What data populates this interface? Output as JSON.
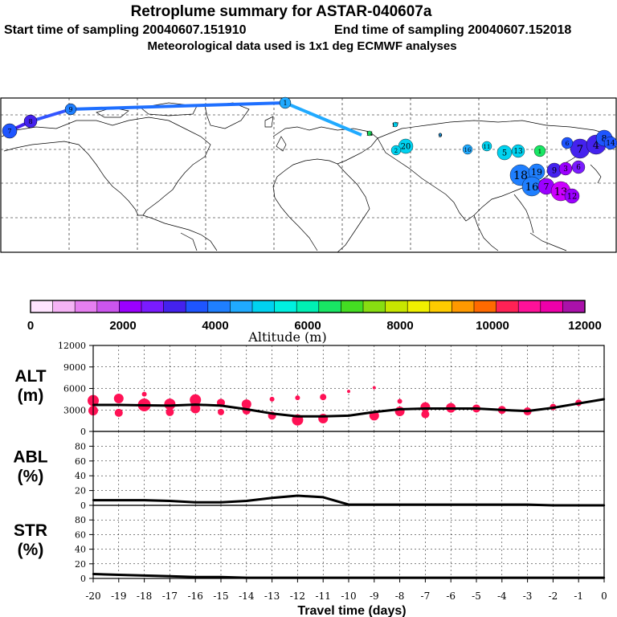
{
  "header": {
    "title": "Retroplume summary for ASTAR-040607a",
    "start_label": "Start time of sampling 20040607.151910",
    "end_label": "End time of sampling 20040607.152018",
    "met_label": "Meteorological data used is 1x1 deg ECMWF analyses"
  },
  "colorbar": {
    "title": "Altitude (m)",
    "tick_labels": [
      "0",
      "2000",
      "4000",
      "6000",
      "8000",
      "10000",
      "12000"
    ],
    "colors": [
      "#ffe4ff",
      "#f5b3f5",
      "#e67ff0",
      "#cc55ee",
      "#9b00ff",
      "#7a1bff",
      "#4422ee",
      "#1e55ff",
      "#1f7fff",
      "#20aaff",
      "#00d2f0",
      "#00f0e0",
      "#00f0b4",
      "#19e664",
      "#44dd22",
      "#88dd11",
      "#c8e600",
      "#f0f000",
      "#ffcc00",
      "#ff9900",
      "#ff6a00",
      "#ff2255",
      "#ff1199",
      "#ee00aa",
      "#aa11aa"
    ]
  },
  "map": {
    "trajectory_labels": [
      "7",
      "8",
      "9",
      "1",
      "2",
      "3",
      "4",
      "5",
      "6"
    ],
    "cluster_labels": [
      "1",
      "2",
      "3",
      "4",
      "5",
      "6",
      "7",
      "8",
      "9",
      "10",
      "11",
      "12",
      "13",
      "14",
      "15",
      "16",
      "17",
      "18",
      "19",
      "20"
    ]
  },
  "chart_data": [
    {
      "type": "line",
      "panel": "ALT",
      "ylabel": "ALT\n(m)",
      "ylabel_line1": "ALT",
      "ylabel_line2": "(m)",
      "xlim": [
        -20,
        0
      ],
      "ylim": [
        0,
        12000
      ],
      "yticks": [
        "0",
        "3000",
        "6000",
        "9000",
        "12000"
      ],
      "x": [
        -20,
        -19,
        -18,
        -17,
        -16,
        -15,
        -14,
        -13,
        -12,
        -11,
        -10,
        -9,
        -8,
        -7,
        -6,
        -5,
        -4,
        -3,
        -2,
        -1,
        0
      ],
      "values": [
        3700,
        3700,
        3650,
        3600,
        3750,
        3600,
        3100,
        2500,
        2100,
        2100,
        2200,
        2700,
        3100,
        3200,
        3200,
        3200,
        3000,
        2850,
        3300,
        3900,
        4500
      ],
      "cluster_points": [
        {
          "x": -20,
          "y": 4300,
          "r": 7
        },
        {
          "x": -20,
          "y": 2900,
          "r": 6
        },
        {
          "x": -19,
          "y": 4600,
          "r": 6
        },
        {
          "x": -19,
          "y": 2600,
          "r": 5
        },
        {
          "x": -18,
          "y": 3700,
          "r": 8
        },
        {
          "x": -18,
          "y": 5200,
          "r": 3
        },
        {
          "x": -17,
          "y": 3800,
          "r": 7
        },
        {
          "x": -17,
          "y": 2700,
          "r": 5
        },
        {
          "x": -16,
          "y": 4400,
          "r": 7
        },
        {
          "x": -16,
          "y": 3200,
          "r": 6
        },
        {
          "x": -15,
          "y": 4000,
          "r": 5
        },
        {
          "x": -15,
          "y": 2700,
          "r": 4
        },
        {
          "x": -14,
          "y": 3800,
          "r": 6
        },
        {
          "x": -14,
          "y": 2900,
          "r": 5
        },
        {
          "x": -13,
          "y": 4500,
          "r": 3
        },
        {
          "x": -13,
          "y": 2200,
          "r": 5
        },
        {
          "x": -12,
          "y": 4700,
          "r": 3
        },
        {
          "x": -12,
          "y": 1600,
          "r": 7
        },
        {
          "x": -11,
          "y": 4800,
          "r": 4
        },
        {
          "x": -11,
          "y": 1800,
          "r": 6
        },
        {
          "x": -10,
          "y": 5600,
          "r": 2
        },
        {
          "x": -9,
          "y": 6100,
          "r": 2
        },
        {
          "x": -9,
          "y": 2200,
          "r": 6
        },
        {
          "x": -8,
          "y": 4200,
          "r": 3
        },
        {
          "x": -8,
          "y": 2800,
          "r": 6
        },
        {
          "x": -7,
          "y": 3400,
          "r": 6
        },
        {
          "x": -7,
          "y": 2400,
          "r": 5
        },
        {
          "x": -6,
          "y": 3300,
          "r": 6
        },
        {
          "x": -5,
          "y": 3200,
          "r": 5
        },
        {
          "x": -4,
          "y": 3000,
          "r": 5
        },
        {
          "x": -3,
          "y": 2800,
          "r": 5
        },
        {
          "x": -2,
          "y": 3400,
          "r": 4
        },
        {
          "x": -1,
          "y": 4000,
          "r": 4
        }
      ]
    },
    {
      "type": "line",
      "panel": "ABL",
      "ylabel": "ABL\n(%)",
      "ylabel_line1": "ABL",
      "ylabel_line2": "(%)",
      "xlim": [
        -20,
        0
      ],
      "ylim": [
        0,
        100
      ],
      "yticks": [
        "0",
        "20",
        "40",
        "60",
        "80"
      ],
      "x": [
        -20,
        -19,
        -18,
        -17,
        -16,
        -15,
        -14,
        -13,
        -12,
        -11,
        -10,
        -9,
        -8,
        -7,
        -6,
        -5,
        -4,
        -3,
        -2,
        -1,
        0
      ],
      "values": [
        7,
        7,
        7,
        6,
        4,
        4,
        6,
        10,
        13,
        11,
        1,
        1,
        1,
        1,
        1,
        1,
        1,
        1,
        0,
        0,
        0
      ]
    },
    {
      "type": "line",
      "panel": "STR",
      "ylabel": "STR\n(%)",
      "ylabel_line1": "STR",
      "ylabel_line2": "(%)",
      "xlim": [
        -20,
        0
      ],
      "ylim": [
        0,
        100
      ],
      "yticks": [
        "0",
        "20",
        "40",
        "60",
        "80"
      ],
      "xlabel": "Travel time (days)",
      "xticks": [
        "-20",
        "-19",
        "-18",
        "-17",
        "-16",
        "-15",
        "-14",
        "-13",
        "-12",
        "-11",
        "-10",
        "-9",
        "-8",
        "-7",
        "-6",
        "-5",
        "-4",
        "-3",
        "-2",
        "-1",
        "0"
      ],
      "x": [
        -20,
        -19,
        -18,
        -17,
        -16,
        -15,
        -14,
        -13,
        -12,
        -11,
        -10,
        -9,
        -8,
        -7,
        -6,
        -5,
        -4,
        -3,
        -2,
        -1,
        0
      ],
      "values": [
        6,
        5,
        4,
        3,
        2,
        2,
        1,
        1,
        1,
        1,
        1,
        1,
        1,
        1,
        1,
        1,
        1,
        1,
        1,
        1,
        1
      ]
    }
  ]
}
